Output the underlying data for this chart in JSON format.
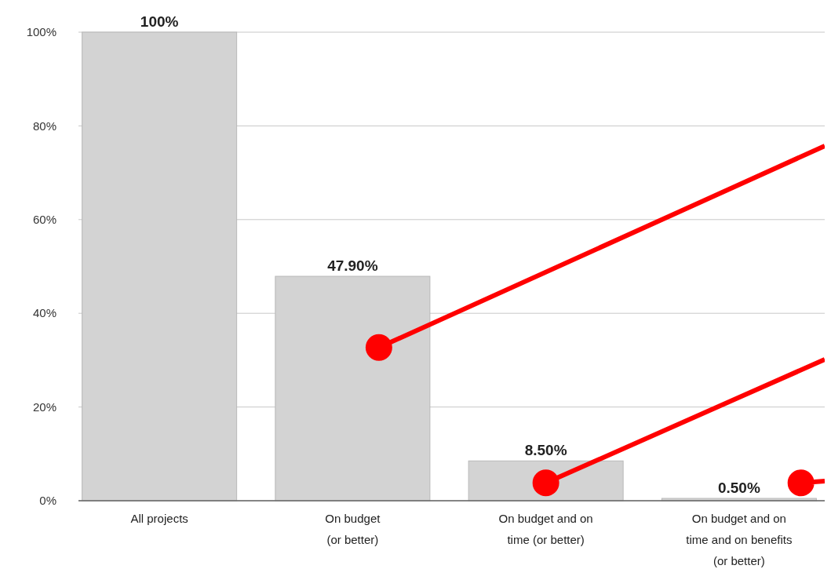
{
  "chart_data": {
    "type": "bar",
    "categories": [
      "All projects",
      "On budget\n(or better)",
      "On budget and on\ntime (or better)",
      "On budget and on\ntime and on benefits\n(or better)"
    ],
    "values": [
      100,
      47.9,
      8.5,
      0.5
    ],
    "value_labels": [
      "100%",
      "47.90%",
      "8.50%",
      "0.50%"
    ],
    "color": "#d3d3d3",
    "ylim": [
      0,
      100
    ],
    "yticks": [
      {
        "value": 0,
        "label": "0%"
      },
      {
        "value": 20,
        "label": "20%"
      },
      {
        "value": 40,
        "label": "40%"
      },
      {
        "value": 60,
        "label": "60%"
      },
      {
        "value": 80,
        "label": "80%"
      },
      {
        "value": 100,
        "label": "100%"
      }
    ],
    "grid": "y"
  }
}
